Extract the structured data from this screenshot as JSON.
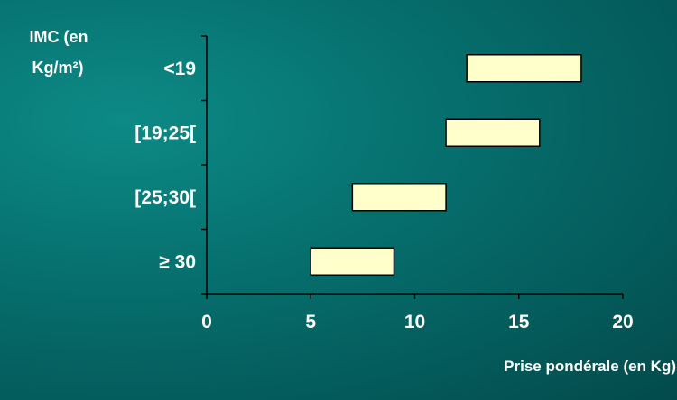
{
  "chart_data": {
    "type": "bar",
    "orientation": "horizontal-range",
    "title": "",
    "ylabel_lines": [
      "IMC (en",
      "Kg/m²)"
    ],
    "xlabel": "Prise pondérale (en Kg)",
    "categories": [
      "<19",
      "[19;25[",
      "[25;30[",
      "≥ 30"
    ],
    "ranges": [
      [
        12.5,
        18
      ],
      [
        11.5,
        16
      ],
      [
        7,
        11.5
      ],
      [
        5,
        9
      ]
    ],
    "xlim": [
      0,
      20
    ],
    "xticks": [
      0,
      5,
      10,
      15,
      20
    ],
    "xtick_labels": [
      "0",
      "5",
      "10",
      "15",
      "20"
    ],
    "grid": false,
    "legend": "none",
    "colors": {
      "background": "#06706e",
      "bar_fill": "#ffffcc",
      "bar_stroke": "#000000",
      "axis": "#000000",
      "text": "#ffffff"
    }
  }
}
